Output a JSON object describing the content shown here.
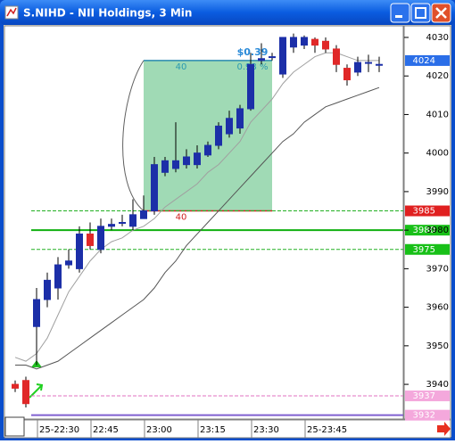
{
  "window": {
    "title": "S.NIHD - NII Holdings, 3 Min"
  },
  "chart_data": {
    "type": "candlestick",
    "categories": [
      null,
      null,
      "25-22:30",
      null,
      null,
      null,
      null,
      "22:45",
      null,
      null,
      null,
      null,
      "23:00",
      null,
      null,
      null,
      null,
      "23:15",
      null,
      null,
      null,
      null,
      "23:30",
      null,
      null,
      null,
      null,
      "25-23:45",
      null,
      null,
      null,
      null,
      null,
      null,
      null
    ],
    "open": [
      3940,
      3941,
      3955,
      3962,
      3965,
      3971,
      3970,
      3979,
      3975,
      3981,
      3982,
      3981,
      3983,
      3985,
      3995,
      3996,
      3997,
      3997,
      3999.5,
      4002,
      4005,
      4006.5,
      4011.5,
      4024,
      4025,
      4020.5,
      4027.5,
      4028,
      4029.5,
      4029,
      4027,
      4022,
      4021,
      4023.5,
      4023
    ],
    "high": [
      3941,
      3942,
      3965,
      3969,
      3973,
      3975,
      3981,
      3982,
      3983,
      3983,
      3984,
      3988,
      3989,
      3999,
      3999,
      4008,
      4001,
      4002,
      4003,
      4008,
      4011,
      4012.5,
      4026,
      4028.5,
      4026,
      4030,
      4031,
      4030.5,
      4030,
      4030,
      4028,
      4023,
      4025,
      4025.5,
      4025
    ],
    "low": [
      3938,
      3934,
      3945,
      3960,
      3962,
      3970,
      3969,
      3975,
      3974,
      3980,
      3981,
      3980,
      3983,
      3984,
      3994,
      3995,
      3996,
      3996,
      3999,
      4001,
      4004,
      4005,
      4011,
      4023,
      4024,
      4019.5,
      4026,
      4027,
      4026,
      4026,
      4021,
      4017.5,
      4020,
      4021,
      4021
    ],
    "close": [
      3939,
      3935,
      3962,
      3967,
      3971,
      3972,
      3979,
      3976,
      3981,
      3981.5,
      3982,
      3984,
      3985,
      3997,
      3998,
      3998,
      3999,
      4000,
      4002,
      4007,
      4009,
      4011.5,
      4023,
      4024.5,
      4025,
      4030,
      4030,
      4030,
      4028,
      4027,
      4023,
      4019,
      4023.5,
      4023.5,
      4023
    ],
    "up_color": "#1c2fa8",
    "down_color": "#e02828",
    "overlays": [
      {
        "color": "#a0a0a0",
        "values": [
          3947,
          3946,
          3948,
          3952,
          3958,
          3964,
          3968,
          3972,
          3975,
          3977,
          3978,
          3980,
          3981,
          3983,
          3986,
          3988,
          3990,
          3992,
          3995,
          3997,
          4000,
          4003,
          4008,
          4011,
          4014,
          4018,
          4021,
          4023,
          4025,
          4026,
          4026,
          4025,
          4024,
          4024,
          4024
        ]
      },
      {
        "color": "#555555",
        "values": [
          3945,
          3945,
          3944,
          3945,
          3946,
          3948,
          3950,
          3952,
          3954,
          3956,
          3958,
          3960,
          3962,
          3965,
          3969,
          3972,
          3976,
          3979,
          3982,
          3985,
          3988,
          3991,
          3994,
          3997,
          4000,
          4003,
          4005,
          4008,
          4010,
          4012,
          4013,
          4014,
          4015,
          4016,
          4017
        ]
      }
    ],
    "levels": [
      {
        "value": 4024,
        "tag_color": "#2a6ee8",
        "text_color": "#ffffff"
      },
      {
        "value": 3985,
        "color": "#22b022",
        "style": "dashed",
        "tag_color": "#e02020",
        "text_color": "#ffffff"
      },
      {
        "value": 3980,
        "color": "#10b010",
        "style": "solid",
        "tag_color": "#18c018",
        "text_color": "#ffffff"
      },
      {
        "value": 3975,
        "color": "#22b022",
        "style": "dashed",
        "tag_color": "#18c018",
        "text_color": "#ffffff"
      },
      {
        "value": 3937,
        "color": "#e070c0",
        "style": "dashed",
        "tag_color": "#f4a8dc",
        "text_color": "#ffffff"
      },
      {
        "value": 3932,
        "color": "#8060d0",
        "style": "solid",
        "tag_color": "#f4a8dc",
        "text_color": "#ffffff"
      }
    ],
    "trade": {
      "entry": 3985,
      "target": 4024,
      "profit": "$0.39",
      "percent": "0.98 %",
      "top_ticks": 40,
      "bottom_ticks": 40
    },
    "ylim": [
      3931,
      4033
    ],
    "yticks": [
      3940,
      3950,
      3960,
      3970,
      3980,
      3990,
      4000,
      4010,
      4020,
      4030
    ]
  }
}
